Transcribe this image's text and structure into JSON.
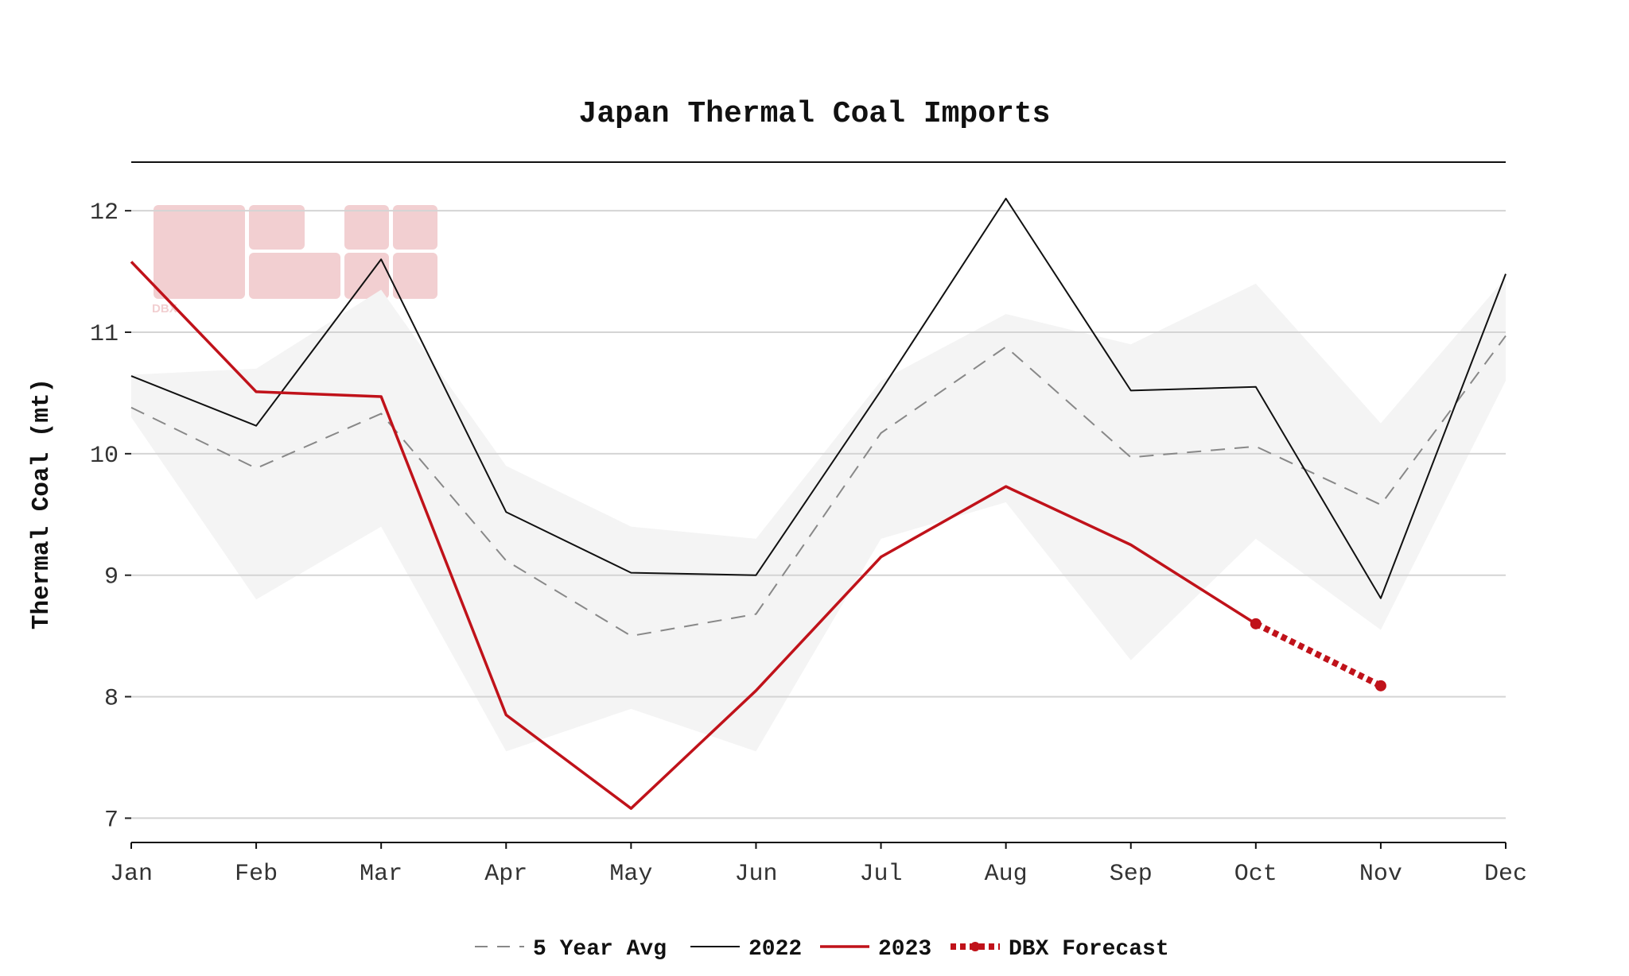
{
  "chart_data": {
    "type": "line",
    "title": "Japan Thermal Coal Imports",
    "xlabel": "",
    "ylabel": "Thermal Coal (mt)",
    "categories": [
      "Jan",
      "Feb",
      "Mar",
      "Apr",
      "May",
      "Jun",
      "Jul",
      "Aug",
      "Sep",
      "Oct",
      "Nov",
      "Dec"
    ],
    "ylim": [
      6.8,
      12.4
    ],
    "yticks": [
      "7",
      "8",
      "9",
      "10",
      "11",
      "12"
    ],
    "grid": "horizontal",
    "legend_position": "bottom",
    "range_band": {
      "low": [
        10.3,
        8.8,
        9.4,
        7.55,
        7.9,
        7.55,
        9.3,
        9.6,
        8.3,
        9.3,
        8.55,
        10.6
      ],
      "high": [
        10.65,
        10.7,
        11.35,
        9.9,
        9.4,
        9.3,
        10.6,
        11.15,
        10.9,
        11.4,
        10.25,
        11.45
      ],
      "color": "#f4f4f4"
    },
    "series": [
      {
        "name": "5 Year Avg",
        "style": "dashed",
        "color": "#888888",
        "values": [
          10.38,
          9.88,
          10.33,
          9.12,
          8.5,
          8.68,
          10.17,
          10.88,
          9.97,
          10.06,
          9.58,
          10.97
        ]
      },
      {
        "name": "2022",
        "style": "solid",
        "color": "#111111",
        "values": [
          10.64,
          10.23,
          11.6,
          9.52,
          9.02,
          9.0,
          10.52,
          12.1,
          10.52,
          10.55,
          8.81,
          11.48
        ]
      },
      {
        "name": "2023",
        "style": "solid",
        "color": "#c0121a",
        "values": [
          11.58,
          10.51,
          10.47,
          7.85,
          7.08,
          8.05,
          9.15,
          9.73,
          9.25,
          8.6,
          null,
          null
        ]
      },
      {
        "name": "DBX Forecast",
        "style": "dotted",
        "color": "#c0121a",
        "values": [
          null,
          null,
          null,
          null,
          null,
          null,
          null,
          null,
          null,
          8.6,
          8.09,
          null
        ]
      }
    ],
    "watermark_text": "DBX",
    "watermark_color": "#f2cfd1"
  }
}
